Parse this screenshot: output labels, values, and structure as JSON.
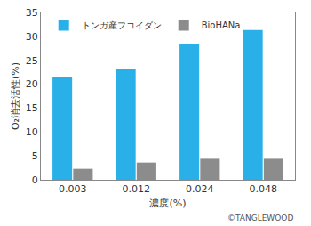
{
  "chart_data": {
    "type": "bar",
    "categories": [
      "0.003",
      "0.012",
      "0.024",
      "0.048"
    ],
    "series": [
      {
        "name": "トンガ産フコイダン",
        "color": "#29b0e8",
        "values": [
          21.5,
          23.2,
          28.3,
          31.3
        ]
      },
      {
        "name": "BioHANa",
        "color": "#8c8c8c",
        "values": [
          2.3,
          3.6,
          4.4,
          4.4
        ]
      }
    ],
    "x_label": "濃度(%)",
    "y_label": "O₂消去活性(%)",
    "ylim": [
      0,
      35
    ],
    "yticks": [
      0,
      5,
      10,
      15,
      20,
      25,
      30,
      35
    ],
    "grid": false,
    "legend": "top",
    "annotations": [
      "©TANGLEWOOD"
    ]
  }
}
